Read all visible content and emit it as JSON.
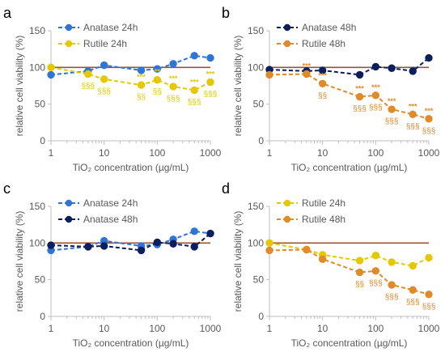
{
  "chart_data": [
    {
      "panel": "a",
      "type": "line",
      "xscale": "log",
      "xlim": [
        1,
        1000
      ],
      "ylim": [
        0,
        150
      ],
      "yticks": [
        0,
        50,
        100,
        150
      ],
      "xticks": [
        1,
        10,
        100,
        1000
      ],
      "xlabel": "TiO₂ concentration (µg/mL)",
      "ylabel": "relative cell viability (%)",
      "reference_line": 100,
      "legend_placement": "top-left",
      "series": [
        {
          "name": "Anatase 24h",
          "color": "#2e75d6",
          "x": [
            1,
            5,
            10,
            50,
            100,
            200,
            500,
            1000
          ],
          "y": [
            90,
            95,
            103,
            96,
            98,
            105,
            116,
            113
          ]
        },
        {
          "name": "Rutile 24h",
          "color": "#e6c800",
          "x": [
            1,
            5,
            10,
            50,
            100,
            200,
            500,
            1000
          ],
          "y": [
            100,
            91,
            84,
            76,
            83,
            74,
            69,
            80
          ],
          "annotations": {
            "stars": [
              "",
              "",
              "",
              "***",
              "**",
              "***",
              "***",
              "***"
            ],
            "sigs": [
              "",
              "§§§",
              "§§§",
              "§§",
              "§§",
              "§§§",
              "§§§",
              "§§§"
            ]
          }
        }
      ]
    },
    {
      "panel": "b",
      "type": "line",
      "xscale": "log",
      "xlim": [
        1,
        1000
      ],
      "ylim": [
        0,
        150
      ],
      "yticks": [
        0,
        50,
        100,
        150
      ],
      "xticks": [
        1,
        10,
        100,
        1000
      ],
      "xlabel": "TiO₂ concentration (µg/mL)",
      "ylabel": "relative cell viability (%)",
      "reference_line": 100,
      "legend_placement": "top-left",
      "series": [
        {
          "name": "Anatase 48h",
          "color": "#0d1e5c",
          "x": [
            1,
            5,
            10,
            50,
            100,
            200,
            500,
            1000
          ],
          "y": [
            97,
            95,
            96,
            90,
            101,
            99,
            95,
            113
          ]
        },
        {
          "name": "Rutile 48h",
          "color": "#e08a2a",
          "x": [
            1,
            5,
            10,
            50,
            100,
            200,
            500,
            1000
          ],
          "y": [
            90,
            91,
            78,
            60,
            62,
            43,
            36,
            30
          ],
          "annotations": {
            "stars": [
              "",
              "***",
              "***",
              "***",
              "***",
              "***",
              "***",
              "***"
            ],
            "sigs": [
              "",
              "",
              "§§",
              "§§§",
              "§§§",
              "§§§",
              "§§§",
              "§§§"
            ]
          }
        }
      ]
    },
    {
      "panel": "c",
      "type": "line",
      "xscale": "log",
      "xlim": [
        1,
        1000
      ],
      "ylim": [
        0,
        150
      ],
      "yticks": [
        0,
        50,
        100,
        150
      ],
      "xticks": [
        1,
        10,
        100,
        1000
      ],
      "xlabel": "TiO₂ concentration (µg/mL)",
      "ylabel": "relative cell viability (%)",
      "reference_line": 100,
      "legend_placement": "top-left",
      "series": [
        {
          "name": "Anatase 24h",
          "color": "#2e75d6",
          "x": [
            1,
            5,
            10,
            50,
            100,
            200,
            500,
            1000
          ],
          "y": [
            90,
            95,
            103,
            96,
            98,
            105,
            116,
            113
          ]
        },
        {
          "name": "Anatase 48h",
          "color": "#0d1e5c",
          "x": [
            1,
            5,
            10,
            50,
            100,
            200,
            500,
            1000
          ],
          "y": [
            97,
            95,
            96,
            90,
            101,
            99,
            95,
            113
          ]
        }
      ]
    },
    {
      "panel": "d",
      "type": "line",
      "xscale": "log",
      "xlim": [
        1,
        1000
      ],
      "ylim": [
        0,
        150
      ],
      "yticks": [
        0,
        50,
        100,
        150
      ],
      "xticks": [
        1,
        10,
        100,
        1000
      ],
      "xlabel": "TiO₂ concentration (µg/mL)",
      "ylabel": "relative cell viability (%)",
      "reference_line": 100,
      "legend_placement": "top-left",
      "series": [
        {
          "name": "Rutile 24h",
          "color": "#e6c800",
          "x": [
            1,
            5,
            10,
            50,
            100,
            200,
            500,
            1000
          ],
          "y": [
            100,
            91,
            84,
            76,
            83,
            74,
            69,
            80
          ]
        },
        {
          "name": "Rutile 48h",
          "color": "#e08a2a",
          "x": [
            1,
            5,
            10,
            50,
            100,
            200,
            500,
            1000
          ],
          "y": [
            90,
            91,
            78,
            60,
            62,
            43,
            36,
            30
          ],
          "annotations": {
            "stars": [
              "",
              "",
              "",
              "",
              "",
              "",
              "",
              ""
            ],
            "sigs": [
              "",
              "",
              "",
              "§§",
              "§§§",
              "§§§",
              "§§§",
              "§§§"
            ]
          }
        }
      ]
    }
  ],
  "colors": {
    "reference_line": "#a0522d",
    "axis": "#bfbfbf",
    "text": "#595959"
  }
}
